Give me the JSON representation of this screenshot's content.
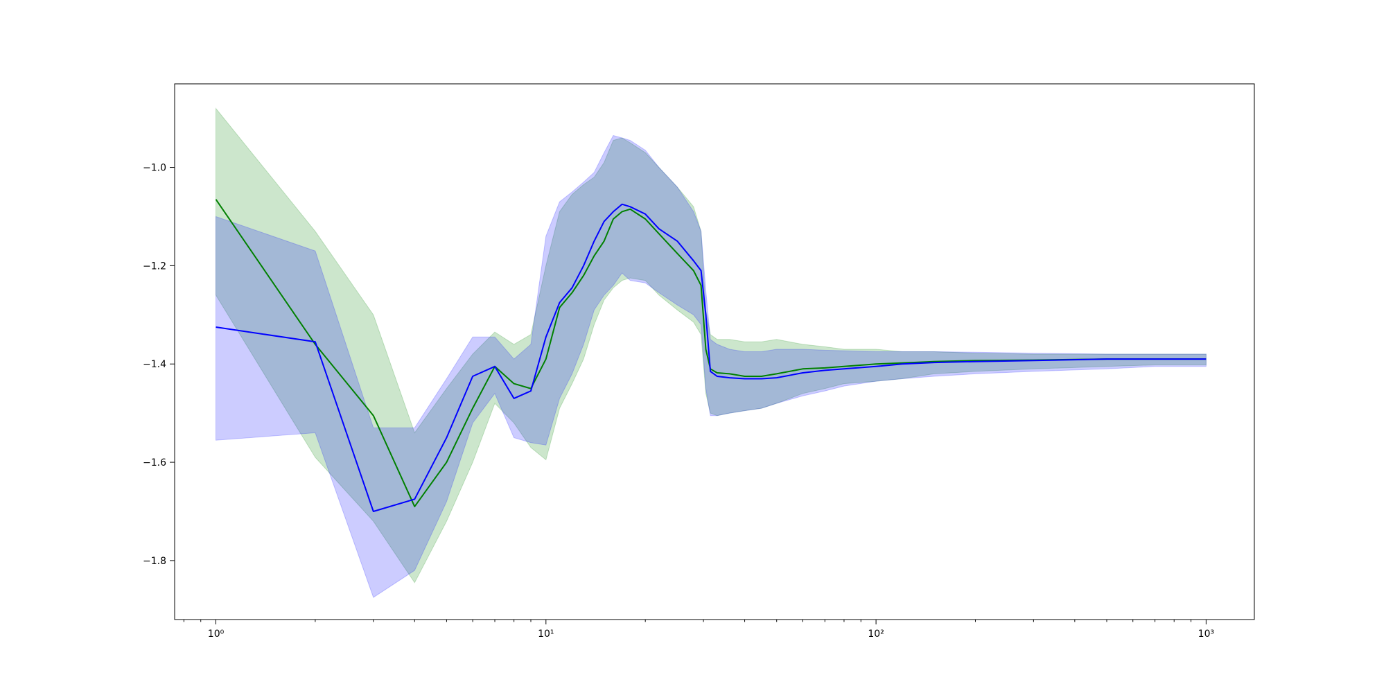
{
  "chart_data": {
    "type": "line",
    "title": "",
    "xlabel": "",
    "ylabel": "",
    "xscale": "log",
    "xlim": [
      0.75,
      1400
    ],
    "ylim": [
      -1.92,
      -0.83
    ],
    "grid": false,
    "legend": "none",
    "xticks": [
      {
        "value": 1,
        "label": "10⁰"
      },
      {
        "value": 10,
        "label": "10¹"
      },
      {
        "value": 100,
        "label": "10²"
      },
      {
        "value": 1000,
        "label": "10³"
      }
    ],
    "yticks": [
      {
        "value": -1.0,
        "label": "−1.0"
      },
      {
        "value": -1.2,
        "label": "−1.2"
      },
      {
        "value": -1.4,
        "label": "−1.4"
      },
      {
        "value": -1.6,
        "label": "−1.6"
      },
      {
        "value": -1.8,
        "label": "−1.8"
      }
    ],
    "series": [
      {
        "color": "#008000",
        "band_color": "#008000",
        "band_opacity": 0.2,
        "x": [
          1,
          2,
          3,
          4,
          5,
          6,
          7,
          8,
          9,
          10,
          11,
          12,
          13,
          14,
          15,
          16,
          17,
          18,
          20,
          22,
          25,
          28,
          29.5,
          30.5,
          31.5,
          33,
          36,
          40,
          45,
          50,
          60,
          70,
          80,
          100,
          120,
          150,
          200,
          300,
          500,
          700,
          1000
        ],
        "y": [
          -1.065,
          -1.36,
          -1.505,
          -1.69,
          -1.6,
          -1.49,
          -1.405,
          -1.44,
          -1.45,
          -1.39,
          -1.285,
          -1.255,
          -1.22,
          -1.18,
          -1.15,
          -1.105,
          -1.09,
          -1.085,
          -1.105,
          -1.135,
          -1.175,
          -1.21,
          -1.24,
          -1.37,
          -1.41,
          -1.418,
          -1.42,
          -1.425,
          -1.425,
          -1.42,
          -1.41,
          -1.408,
          -1.405,
          -1.4,
          -1.398,
          -1.395,
          -1.393,
          -1.392,
          -1.39,
          -1.39,
          -1.39
        ],
        "upper": [
          -0.88,
          -1.13,
          -1.3,
          -1.54,
          -1.45,
          -1.38,
          -1.335,
          -1.36,
          -1.34,
          -1.2,
          -1.09,
          -1.055,
          -1.035,
          -1.02,
          -0.99,
          -0.945,
          -0.94,
          -0.95,
          -0.97,
          -1.0,
          -1.04,
          -1.08,
          -1.13,
          -1.29,
          -1.34,
          -1.35,
          -1.35,
          -1.355,
          -1.355,
          -1.35,
          -1.36,
          -1.365,
          -1.37,
          -1.37,
          -1.375,
          -1.375,
          -1.378,
          -1.38,
          -1.38,
          -1.38,
          -1.38
        ],
        "lower": [
          -1.26,
          -1.59,
          -1.72,
          -1.845,
          -1.72,
          -1.6,
          -1.48,
          -1.52,
          -1.57,
          -1.595,
          -1.49,
          -1.44,
          -1.39,
          -1.32,
          -1.27,
          -1.245,
          -1.23,
          -1.225,
          -1.23,
          -1.26,
          -1.29,
          -1.315,
          -1.34,
          -1.46,
          -1.5,
          -1.505,
          -1.5,
          -1.495,
          -1.49,
          -1.48,
          -1.46,
          -1.45,
          -1.44,
          -1.435,
          -1.43,
          -1.42,
          -1.415,
          -1.41,
          -1.405,
          -1.402,
          -1.402
        ]
      },
      {
        "color": "#0000ff",
        "band_color": "#0000ff",
        "band_opacity": 0.2,
        "x": [
          1,
          2,
          3,
          4,
          5,
          6,
          7,
          8,
          9,
          10,
          11,
          12,
          13,
          14,
          15,
          16,
          17,
          18,
          20,
          22,
          25,
          28,
          29.5,
          30.5,
          31.5,
          33,
          36,
          40,
          45,
          50,
          60,
          70,
          80,
          100,
          120,
          150,
          200,
          300,
          500,
          700,
          1000
        ],
        "y": [
          -1.325,
          -1.355,
          -1.7,
          -1.675,
          -1.55,
          -1.425,
          -1.405,
          -1.47,
          -1.455,
          -1.345,
          -1.275,
          -1.245,
          -1.2,
          -1.15,
          -1.11,
          -1.09,
          -1.075,
          -1.08,
          -1.095,
          -1.125,
          -1.15,
          -1.19,
          -1.21,
          -1.3,
          -1.415,
          -1.425,
          -1.428,
          -1.43,
          -1.43,
          -1.428,
          -1.418,
          -1.413,
          -1.41,
          -1.405,
          -1.4,
          -1.397,
          -1.395,
          -1.393,
          -1.39,
          -1.39,
          -1.39
        ],
        "upper": [
          -1.1,
          -1.17,
          -1.53,
          -1.53,
          -1.43,
          -1.345,
          -1.345,
          -1.39,
          -1.36,
          -1.14,
          -1.07,
          -1.05,
          -1.03,
          -1.01,
          -0.97,
          -0.935,
          -0.94,
          -0.945,
          -0.965,
          -1.0,
          -1.04,
          -1.09,
          -1.13,
          -1.25,
          -1.35,
          -1.36,
          -1.37,
          -1.375,
          -1.375,
          -1.37,
          -1.37,
          -1.372,
          -1.373,
          -1.375,
          -1.375,
          -1.375,
          -1.376,
          -1.378,
          -1.38,
          -1.38,
          -1.38
        ],
        "lower": [
          -1.555,
          -1.54,
          -1.875,
          -1.82,
          -1.68,
          -1.52,
          -1.46,
          -1.55,
          -1.56,
          -1.565,
          -1.47,
          -1.42,
          -1.36,
          -1.29,
          -1.26,
          -1.24,
          -1.215,
          -1.23,
          -1.235,
          -1.255,
          -1.28,
          -1.3,
          -1.32,
          -1.45,
          -1.505,
          -1.505,
          -1.5,
          -1.495,
          -1.49,
          -1.48,
          -1.465,
          -1.455,
          -1.445,
          -1.435,
          -1.43,
          -1.425,
          -1.42,
          -1.415,
          -1.41,
          -1.405,
          -1.405
        ]
      }
    ]
  }
}
